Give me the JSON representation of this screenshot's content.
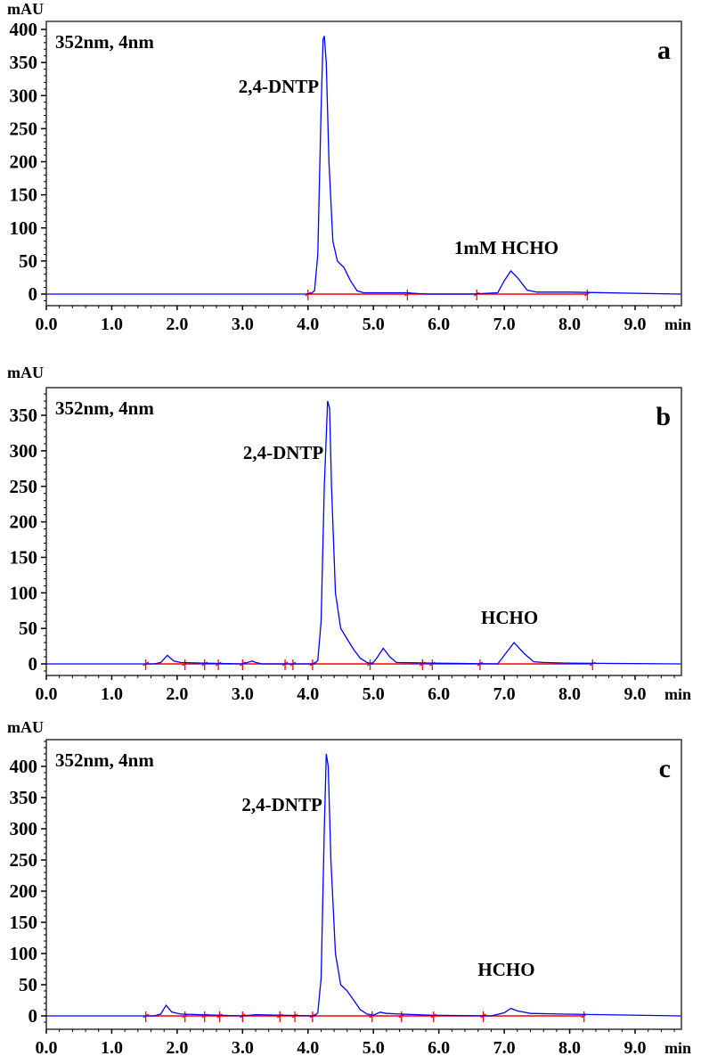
{
  "colors": {
    "trace": "#0000ff",
    "baseline": "#ff0000",
    "axis": "#000000"
  },
  "chart_data": [
    {
      "type": "line",
      "panel": "a",
      "title": "",
      "annotation_wavelength": "352nm, 4nm",
      "xlabel": "min",
      "ylabel": "mAU",
      "xlim": [
        0.0,
        9.7
      ],
      "ylim": [
        -15,
        400
      ],
      "xticks": [
        "0.0",
        "1.0",
        "2.0",
        "3.0",
        "4.0",
        "5.0",
        "6.0",
        "7.0",
        "8.0",
        "9.0"
      ],
      "yticks": [
        "0",
        "50",
        "100",
        "150",
        "200",
        "250",
        "300",
        "350",
        "400"
      ],
      "peak_labels": [
        {
          "text": "2,4-DNTP",
          "x": 4.25,
          "y": 390
        },
        {
          "text": "1mM HCHO",
          "x": 7.1,
          "y": 35
        }
      ],
      "series": [
        {
          "name": "chromatogram",
          "x": [
            0,
            3.95,
            4.05,
            4.1,
            4.15,
            4.2,
            4.23,
            4.25,
            4.28,
            4.32,
            4.38,
            4.45,
            4.55,
            4.65,
            4.75,
            4.85,
            5.5,
            5.8,
            6.5,
            6.9,
            7.0,
            7.1,
            7.2,
            7.35,
            7.5,
            8.0,
            9.7
          ],
          "y": [
            0,
            0,
            1,
            5,
            60,
            280,
            385,
            390,
            350,
            200,
            80,
            50,
            40,
            20,
            5,
            2,
            2,
            0,
            0,
            2,
            20,
            35,
            25,
            6,
            3,
            3,
            0
          ]
        }
      ],
      "integration_marks": [
        4.0,
        5.52,
        6.58,
        8.27
      ]
    },
    {
      "type": "line",
      "panel": "b",
      "annotation_wavelength": "352nm, 4nm",
      "xlabel": "min",
      "ylabel": "mAU",
      "xlim": [
        0.0,
        9.7
      ],
      "ylim": [
        -15,
        389
      ],
      "xticks": [
        "0.0",
        "1.0",
        "2.0",
        "3.0",
        "4.0",
        "5.0",
        "6.0",
        "7.0",
        "8.0",
        "9.0"
      ],
      "yticks": [
        "0",
        "50",
        "100",
        "150",
        "200",
        "250",
        "300",
        "350"
      ],
      "peak_labels": [
        {
          "text": "2,4-DNTP",
          "x": 4.32,
          "y": 370
        },
        {
          "text": "HCHO",
          "x": 7.15,
          "y": 30
        }
      ],
      "series": [
        {
          "name": "chromatogram",
          "x": [
            0,
            1.65,
            1.75,
            1.85,
            1.95,
            2.05,
            2.4,
            3.0,
            3.15,
            3.2,
            3.3,
            4.1,
            4.15,
            4.2,
            4.25,
            4.3,
            4.33,
            4.36,
            4.42,
            4.5,
            4.6,
            4.7,
            4.8,
            4.9,
            4.98,
            5.05,
            5.15,
            5.25,
            5.35,
            5.9,
            6.9,
            7.0,
            7.15,
            7.3,
            7.45,
            7.6,
            8.0,
            9.7
          ],
          "y": [
            0,
            0,
            2,
            12,
            4,
            2,
            1,
            0,
            4,
            2,
            0,
            0,
            5,
            60,
            250,
            370,
            360,
            250,
            100,
            50,
            35,
            20,
            8,
            2,
            0,
            8,
            22,
            10,
            2,
            1,
            0,
            12,
            30,
            15,
            3,
            2,
            1,
            0
          ]
        }
      ],
      "integration_marks": [
        1.52,
        2.12,
        2.42,
        2.63,
        3.0,
        3.65,
        3.77,
        4.07,
        4.95,
        5.75,
        5.9,
        6.63,
        8.35
      ]
    },
    {
      "type": "line",
      "panel": "c",
      "annotation_wavelength": "352nm, 4nm",
      "xlabel": "min",
      "ylabel": "mAU",
      "xlim": [
        0.0,
        9.7
      ],
      "ylim": [
        -15,
        443
      ],
      "xticks": [
        "0.0",
        "1.0",
        "2.0",
        "3.0",
        "4.0",
        "5.0",
        "6.0",
        "7.0",
        "8.0",
        "9.0"
      ],
      "yticks": [
        "0",
        "50",
        "100",
        "150",
        "200",
        "250",
        "300",
        "350",
        "400"
      ],
      "peak_labels": [
        {
          "text": "2,4-DNTP",
          "x": 4.3,
          "y": 420
        },
        {
          "text": "HCHO",
          "x": 7.1,
          "y": 12
        }
      ],
      "series": [
        {
          "name": "chromatogram",
          "x": [
            0,
            1.65,
            1.75,
            1.83,
            1.92,
            2.05,
            2.35,
            3.0,
            3.2,
            4.1,
            4.15,
            4.2,
            4.25,
            4.28,
            4.31,
            4.35,
            4.42,
            4.5,
            4.6,
            4.7,
            4.8,
            4.9,
            5.0,
            5.1,
            5.2,
            5.4,
            5.9,
            6.8,
            7.0,
            7.1,
            7.2,
            7.4,
            7.85,
            9.7
          ],
          "y": [
            0,
            0,
            3,
            17,
            6,
            3,
            2,
            0,
            2,
            0,
            5,
            60,
            300,
            420,
            400,
            250,
            100,
            50,
            40,
            25,
            10,
            3,
            1,
            6,
            4,
            3,
            1,
            0,
            5,
            12,
            8,
            4,
            3,
            0
          ]
        }
      ],
      "integration_marks": [
        1.52,
        2.12,
        2.42,
        2.65,
        3.0,
        3.57,
        3.8,
        4.07,
        4.98,
        5.43,
        5.92,
        6.68,
        8.22
      ]
    }
  ],
  "panels": [
    {
      "letter": "a",
      "unit": "mAU",
      "wavelength": "352nm, 4nm",
      "peak1": "2,4-DNTP",
      "peak2": "1mM HCHO",
      "xunit": "min"
    },
    {
      "letter": "b",
      "unit": "mAU",
      "wavelength": "352nm, 4nm",
      "peak1": "2,4-DNTP",
      "peak2": "HCHO",
      "xunit": "min"
    },
    {
      "letter": "c",
      "unit": "mAU",
      "wavelength": "352nm, 4nm",
      "peak1": "2,4-DNTP",
      "peak2": "HCHO",
      "xunit": "min"
    }
  ]
}
